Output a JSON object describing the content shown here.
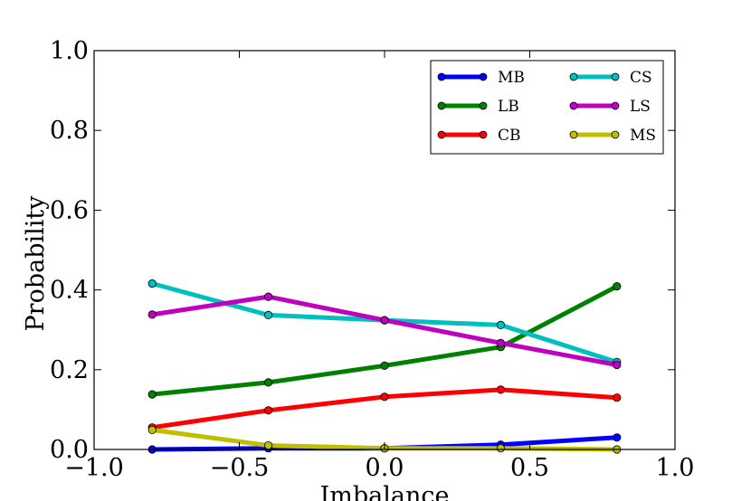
{
  "chart_data": {
    "type": "line",
    "title": "",
    "xlabel": "Imbalance",
    "ylabel": "Probability",
    "xlim": [
      -1.0,
      1.0
    ],
    "ylim": [
      0.0,
      1.0
    ],
    "xticks": [
      -1.0,
      -0.5,
      0.0,
      0.5,
      1.0
    ],
    "xtick_labels": [
      "−1.0",
      "−0.5",
      "0.0",
      "0.5",
      "1.0"
    ],
    "yticks": [
      0.0,
      0.2,
      0.4,
      0.6,
      0.8,
      1.0
    ],
    "ytick_labels": [
      "0.0",
      "0.2",
      "0.4",
      "0.6",
      "0.8",
      "1.0"
    ],
    "grid": false,
    "legend_position": "top-right",
    "x": [
      -0.8,
      -0.4,
      0.0,
      0.4,
      0.8
    ],
    "series": [
      {
        "name": "MB",
        "color": "#0000ff",
        "values": [
          0.0,
          0.003,
          0.003,
          0.012,
          0.03
        ]
      },
      {
        "name": "LB",
        "color": "#008000",
        "values": [
          0.138,
          0.168,
          0.21,
          0.257,
          0.409
        ]
      },
      {
        "name": "CB",
        "color": "#ff0000",
        "values": [
          0.055,
          0.098,
          0.132,
          0.15,
          0.13
        ]
      },
      {
        "name": "CS",
        "color": "#00bfbf",
        "values": [
          0.416,
          0.337,
          0.324,
          0.312,
          0.219
        ]
      },
      {
        "name": "LS",
        "color": "#bf00bf",
        "values": [
          0.338,
          0.383,
          0.324,
          0.267,
          0.212
        ]
      },
      {
        "name": "MS",
        "color": "#bfbf00",
        "values": [
          0.049,
          0.01,
          0.003,
          0.003,
          0.0
        ]
      }
    ]
  }
}
